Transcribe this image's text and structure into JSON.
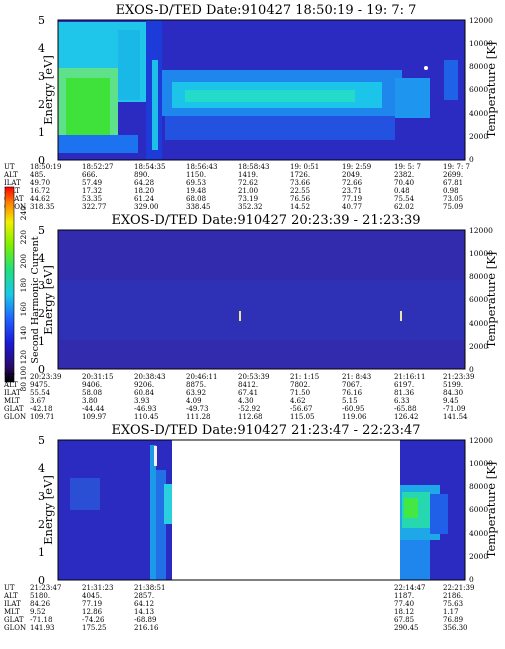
{
  "chart_data": [
    {
      "type": "heatmap",
      "title": "EXOS-D/TED   Date:910427   18:50:19 - 19: 7: 7",
      "ylabel": "Energy [eV]",
      "y2label": "Temperature [K]",
      "ylim": [
        0,
        5
      ],
      "y2lim": [
        0,
        12000
      ],
      "yticks": [
        "0",
        "1",
        "2",
        "3",
        "4",
        "5"
      ],
      "y2ticks": [
        "0",
        "2000",
        "4000",
        "6000",
        "8000",
        "10000",
        "12000"
      ],
      "table": {
        "labels": [
          "UT",
          "ALT",
          "ILAT",
          "MLT",
          "GLAT",
          "GLON"
        ],
        "columns": [
          [
            "18:50:19",
            "485.",
            "49.70",
            "16.72",
            "44.62",
            "318.35"
          ],
          [
            "18:52:27",
            "666.",
            "57.49",
            "17.32",
            "53.35",
            "322.77"
          ],
          [
            "18:54:35",
            "890.",
            "64.28",
            "18.20",
            "61.24",
            "329.00"
          ],
          [
            "18:56:43",
            "1150.",
            "69.53",
            "19.48",
            "68.08",
            "338.45"
          ],
          [
            "18:58:43",
            "1419.",
            "72.62",
            "21.00",
            "73.19",
            "352.32"
          ],
          [
            "19: 0:51",
            "1726.",
            "73.66",
            "22.55",
            "76.56",
            "14.52"
          ],
          [
            "19: 2:59",
            "2049.",
            "72.66",
            "23.71",
            "77.19",
            "40.77"
          ],
          [
            "19: 5: 7",
            "2382.",
            "70.40",
            "0.48",
            "75.54",
            "62.02"
          ],
          [
            "19: 7: 7",
            "2699.",
            "67.81",
            "0.98",
            "73.05",
            "75.09"
          ]
        ]
      }
    },
    {
      "type": "heatmap",
      "title": "EXOS-D/TED   Date:910427   20:23:39 - 21:23:39",
      "ylabel": "Energy [eV]",
      "y2label": "Temperature [K]",
      "ylim": [
        0,
        5
      ],
      "y2lim": [
        0,
        12000
      ],
      "yticks": [
        "0",
        "1",
        "2",
        "3",
        "4",
        "5"
      ],
      "y2ticks": [
        "0",
        "2000",
        "4000",
        "6000",
        "8000",
        "10000",
        "12000"
      ],
      "table": {
        "labels": [
          "UT",
          "ALT",
          "ILAT",
          "MLT",
          "GLAT",
          "GLON"
        ],
        "columns": [
          [
            "20:23:39",
            "9475.",
            "55.54",
            "3.67",
            "-42.18",
            "109.71"
          ],
          [
            "20:31:15",
            "9406.",
            "58.08",
            "3.80",
            "-44.44",
            "109.97"
          ],
          [
            "20:38:43",
            "9206.",
            "60.84",
            "3.93",
            "-46.93",
            "110.45"
          ],
          [
            "20:46:11",
            "8875.",
            "63.92",
            "4.09",
            "-49.73",
            "111.28"
          ],
          [
            "20:53:39",
            "8412.",
            "67.41",
            "4.30",
            "-52.92",
            "112.68"
          ],
          [
            "21: 1:15",
            "7802.",
            "71.50",
            "4.62",
            "-56.67",
            "115.05"
          ],
          [
            "21: 8:43",
            "7067.",
            "76.16",
            "5.15",
            "-60.95",
            "119.06"
          ],
          [
            "21:16:11",
            "6197.",
            "81.36",
            "6.33",
            "-65.88",
            "126.42"
          ],
          [
            "21:23:39",
            "5199.",
            "84.30",
            "9.45",
            "-71.09",
            "141.54"
          ]
        ]
      },
      "colorbar": {
        "label": "Second Harmonic Current",
        "range": [
          80,
          240
        ],
        "ticks": [
          "80",
          "100",
          "120",
          "140",
          "160",
          "180",
          "200",
          "220",
          "240"
        ]
      }
    },
    {
      "type": "heatmap",
      "title": "EXOS-D/TED   Date:910427   21:23:47 - 22:23:47",
      "ylabel": "Energy [eV]",
      "y2label": "Temperature [K]",
      "ylim": [
        0,
        5
      ],
      "y2lim": [
        0,
        12000
      ],
      "yticks": [
        "0",
        "1",
        "2",
        "3",
        "4",
        "5"
      ],
      "y2ticks": [
        "0",
        "2000",
        "4000",
        "6000",
        "8000",
        "10000",
        "12000"
      ],
      "data_gap": [
        "21:38:51",
        "22:14:47"
      ],
      "table": {
        "labels": [
          "UT",
          "ALT",
          "ILAT",
          "MLT",
          "GLAT",
          "GLON"
        ],
        "columns": [
          [
            "21:23:47",
            "5180.",
            "84.26",
            "9.52",
            "-71.18",
            "141.93"
          ],
          [
            "21:31:23",
            "4045.",
            "77.19",
            "12.86",
            "-74.26",
            "175.25"
          ],
          [
            "21:38:51",
            "2857.",
            "64.12",
            "14.13",
            "-68.89",
            "216.16"
          ],
          [
            "22:14:47",
            "1187.",
            "77.40",
            "18.12",
            "67.85",
            "290.45"
          ],
          [
            "22:21:39",
            "2186.",
            "75.63",
            "1.17",
            "76.89",
            "356.30"
          ]
        ]
      }
    }
  ]
}
